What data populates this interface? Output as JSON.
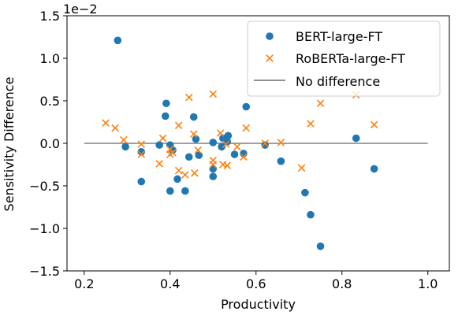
{
  "chart_data": {
    "type": "scatter",
    "title": "",
    "xlabel": "Productivity",
    "ylabel": "Sensitivity Difference",
    "y_offset_label": "1e−2",
    "xlim": [
      0.16,
      1.05
    ],
    "ylim": [
      -1.5,
      1.5
    ],
    "x_ticks": [
      0.2,
      0.4,
      0.6,
      0.8,
      1.0
    ],
    "x_tick_labels": [
      "0.2",
      "0.4",
      "0.6",
      "0.8",
      "1.0"
    ],
    "y_ticks": [
      -1.5,
      -1.0,
      -0.5,
      0.0,
      0.5,
      1.0,
      1.5
    ],
    "y_tick_labels": [
      "−1.5",
      "−1.0",
      "−0.5",
      "0.0",
      "0.5",
      "1.0",
      "1.5"
    ],
    "legend_position": "top-right",
    "series": [
      {
        "name": "BERT-large-FT",
        "marker": "circle",
        "color": "#1f77b4",
        "points": [
          [
            0.278,
            1.21
          ],
          [
            0.296,
            -0.04
          ],
          [
            0.333,
            -0.1
          ],
          [
            0.333,
            -0.45
          ],
          [
            0.375,
            -0.02
          ],
          [
            0.389,
            0.32
          ],
          [
            0.391,
            0.47
          ],
          [
            0.4,
            -0.56
          ],
          [
            0.4,
            -0.02
          ],
          [
            0.406,
            -0.08
          ],
          [
            0.417,
            -0.42
          ],
          [
            0.435,
            -0.56
          ],
          [
            0.444,
            -0.16
          ],
          [
            0.455,
            0.31
          ],
          [
            0.46,
            0.05
          ],
          [
            0.467,
            -0.14
          ],
          [
            0.5,
            0.01
          ],
          [
            0.5,
            -0.3
          ],
          [
            0.5,
            -0.39
          ],
          [
            0.52,
            -0.04
          ],
          [
            0.523,
            0.06
          ],
          [
            0.533,
            0.02
          ],
          [
            0.535,
            0.09
          ],
          [
            0.55,
            -0.13
          ],
          [
            0.571,
            -0.12
          ],
          [
            0.577,
            0.43
          ],
          [
            0.621,
            -0.02
          ],
          [
            0.658,
            -0.21
          ],
          [
            0.714,
            -0.58
          ],
          [
            0.727,
            -0.84
          ],
          [
            0.75,
            -1.21
          ],
          [
            0.833,
            0.06
          ],
          [
            0.875,
            -0.3
          ]
        ]
      },
      {
        "name": "RoBERTa-large-FT",
        "marker": "x",
        "color": "#ff7f0e",
        "points": [
          [
            0.25,
            0.24
          ],
          [
            0.272,
            0.18
          ],
          [
            0.292,
            0.04
          ],
          [
            0.333,
            -0.01
          ],
          [
            0.333,
            -0.13
          ],
          [
            0.375,
            -0.24
          ],
          [
            0.383,
            0.06
          ],
          [
            0.4,
            -0.07
          ],
          [
            0.4,
            -0.13
          ],
          [
            0.406,
            -0.11
          ],
          [
            0.42,
            0.21
          ],
          [
            0.42,
            -0.32
          ],
          [
            0.435,
            -0.37
          ],
          [
            0.444,
            0.54
          ],
          [
            0.455,
            0.11
          ],
          [
            0.457,
            -0.35
          ],
          [
            0.465,
            -0.08
          ],
          [
            0.5,
            0.58
          ],
          [
            0.5,
            -0.2
          ],
          [
            0.5,
            -0.25
          ],
          [
            0.517,
            0.12
          ],
          [
            0.523,
            -0.25
          ],
          [
            0.53,
            -0.01
          ],
          [
            0.533,
            -0.26
          ],
          [
            0.556,
            -0.04
          ],
          [
            0.571,
            -0.16
          ],
          [
            0.577,
            0.18
          ],
          [
            0.621,
            0.0
          ],
          [
            0.658,
            0.01
          ],
          [
            0.706,
            -0.29
          ],
          [
            0.727,
            0.23
          ],
          [
            0.75,
            0.47
          ],
          [
            0.833,
            0.57
          ],
          [
            0.875,
            0.22
          ]
        ]
      }
    ],
    "reference_line": {
      "name": "No difference",
      "color": "#808080",
      "x": [
        0.2,
        1.0
      ],
      "y": [
        0.0,
        0.0
      ]
    }
  }
}
